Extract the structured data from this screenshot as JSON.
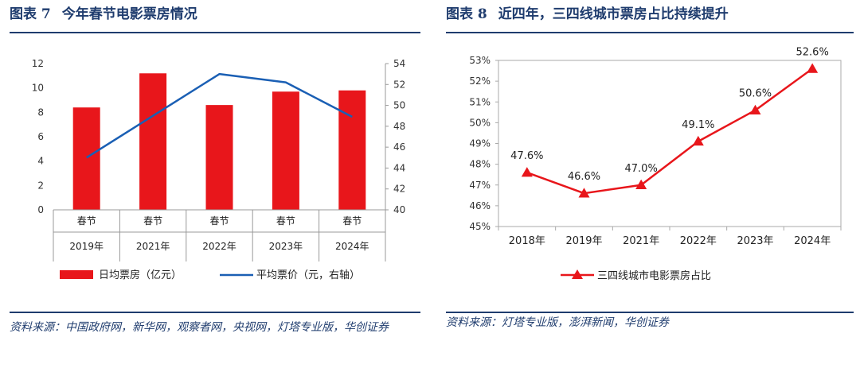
{
  "left": {
    "figure_no": "图表 7",
    "title": "今年春节电影票房情况",
    "source": "资料来源：中国政府网，新华网，观察者网，央视网，灯塔专业版，华创证券",
    "category_labels": [
      "春节",
      "春节",
      "春节",
      "春节",
      "春节"
    ],
    "legend": [
      "日均票房（亿元）",
      "平均票价（元，右轴）"
    ],
    "colors": {
      "bar": "#e8161b",
      "line": "#1a5fb4",
      "title": "#1f3c6e"
    }
  },
  "right": {
    "figure_no": "图表 8",
    "title": "近四年，三四线城市票房占比持续提升",
    "source": "资料来源：灯塔专业版，澎湃新闻，华创证券",
    "legend": [
      "三四线城市电影票房占比"
    ],
    "colors": {
      "line": "#e8161b"
    }
  },
  "chart_data": [
    {
      "type": "bar",
      "categories": [
        "2019年",
        "2021年",
        "2022年",
        "2023年",
        "2024年"
      ],
      "series": [
        {
          "name": "日均票房（亿元）",
          "type": "bar",
          "axis": "left",
          "values": [
            8.4,
            11.2,
            8.6,
            9.7,
            9.8
          ]
        },
        {
          "name": "平均票价（元，右轴）",
          "type": "line",
          "axis": "right",
          "values": [
            45.0,
            49.0,
            53.0,
            52.2,
            48.9
          ]
        }
      ],
      "y_left": {
        "min": 0,
        "max": 12,
        "ticks": [
          "0",
          "2",
          "4",
          "6",
          "8",
          "10",
          "12"
        ]
      },
      "y_right": {
        "min": 40,
        "max": 54,
        "ticks": [
          "40",
          "42",
          "44",
          "46",
          "48",
          "50",
          "52",
          "54"
        ]
      },
      "legend_position": "bottom",
      "grid": false
    },
    {
      "type": "line",
      "categories": [
        "2018年",
        "2019年",
        "2021年",
        "2022年",
        "2023年",
        "2024年"
      ],
      "series": [
        {
          "name": "三四线城市电影票房占比",
          "values": [
            47.6,
            46.6,
            47.0,
            49.1,
            50.6,
            52.6
          ],
          "labels": [
            "47.6%",
            "46.6%",
            "47.0%",
            "49.1%",
            "50.6%",
            "52.6%"
          ],
          "marker": "triangle"
        }
      ],
      "y": {
        "min": 45,
        "max": 53,
        "ticks": [
          "45%",
          "46%",
          "47%",
          "48%",
          "49%",
          "50%",
          "51%",
          "52%",
          "53%"
        ]
      },
      "legend_position": "bottom",
      "grid": false,
      "frame": true
    }
  ]
}
